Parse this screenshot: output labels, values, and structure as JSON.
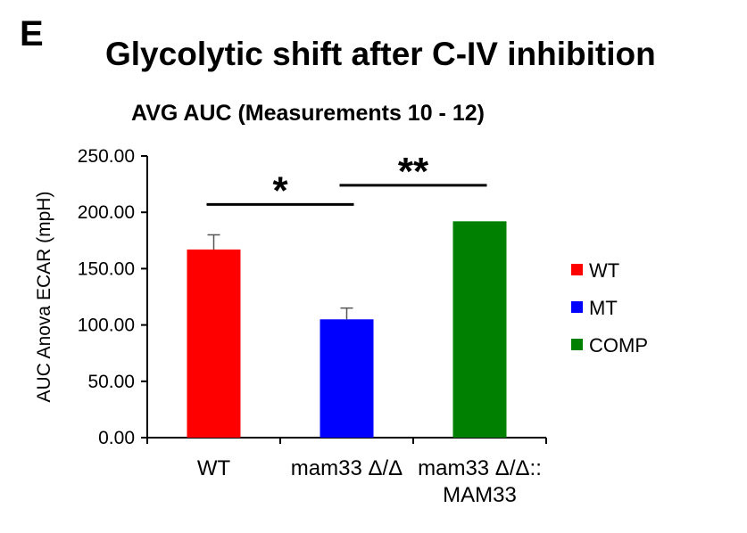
{
  "panel_letter": "E",
  "chart_data": {
    "type": "bar",
    "title": "Glycolytic shift after C-IV inhibition",
    "subtitle": "AVG AUC (Measurements 10 - 12)",
    "xlabel": "",
    "ylabel": "AUC Anova ECAR (mpH)",
    "ylim": [
      0,
      250
    ],
    "yticks": [
      "0.00",
      "50.00",
      "100.00",
      "150.00",
      "200.00",
      "250.00"
    ],
    "ytick_values": [
      0,
      50,
      100,
      150,
      200,
      250
    ],
    "categories": [
      {
        "lines": [
          "WT"
        ]
      },
      {
        "lines": [
          "mam33 Δ/Δ"
        ]
      },
      {
        "lines": [
          "mam33 Δ/Δ::",
          "MAM33"
        ]
      }
    ],
    "values": [
      167,
      105,
      192
    ],
    "errors": [
      13,
      10,
      0
    ],
    "colors": [
      "#ff0000",
      "#0000ff",
      "#008000"
    ],
    "legend": [
      {
        "label": "WT",
        "color": "#ff0000"
      },
      {
        "label": "MT",
        "color": "#0000ff"
      },
      {
        "label": "COMP",
        "color": "#008000"
      }
    ],
    "legend_position": "right",
    "significance": [
      {
        "from": 0,
        "to": 1,
        "label": "*",
        "y": 207
      },
      {
        "from": 1,
        "to": 2,
        "label": "**",
        "y": 224
      }
    ]
  }
}
